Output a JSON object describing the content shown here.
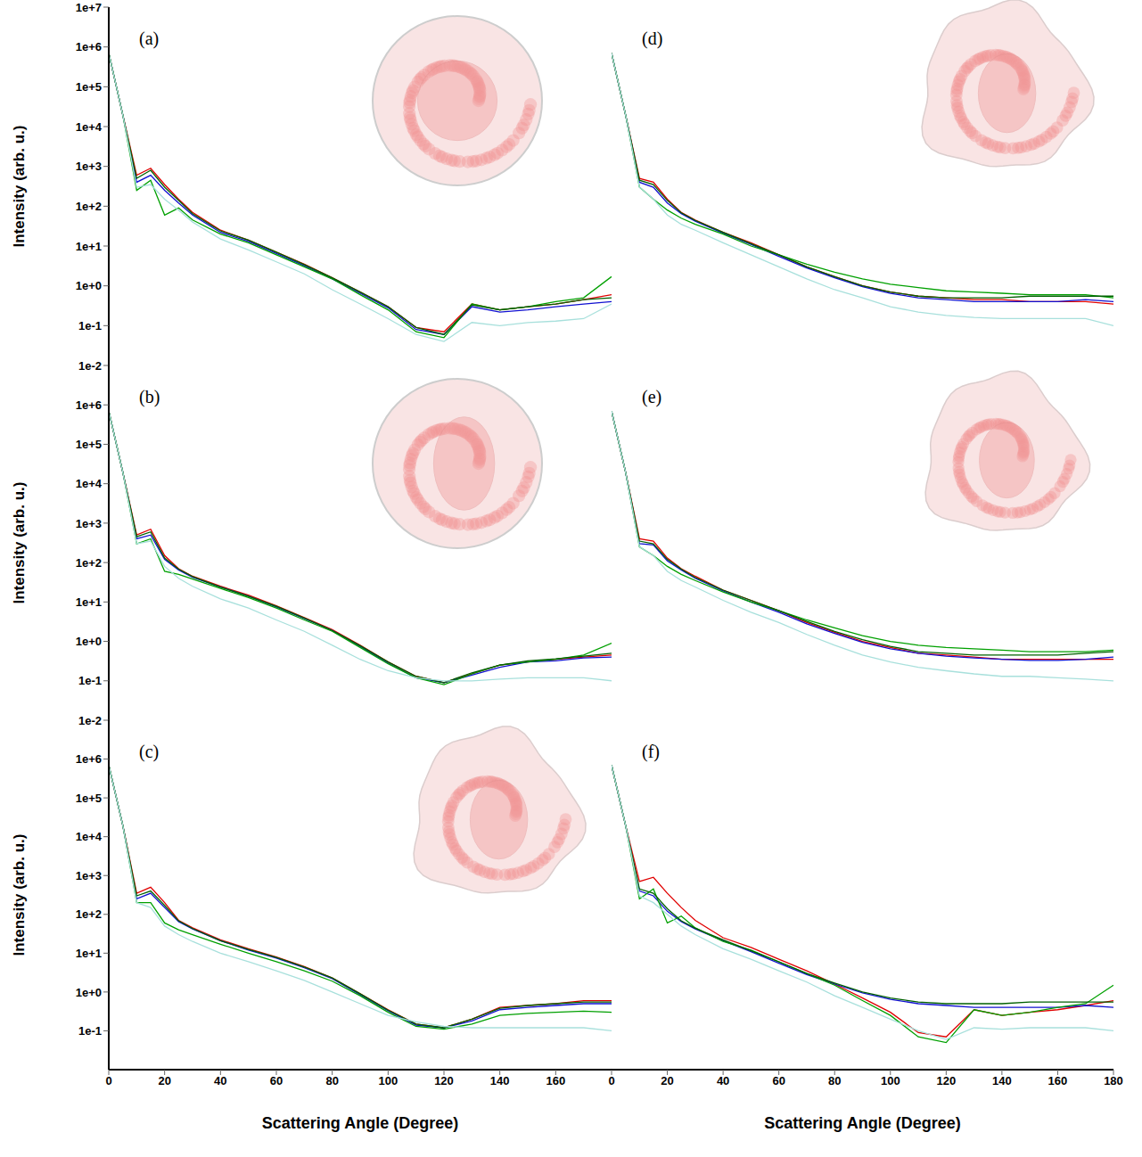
{
  "chart_data": [
    {
      "type": "line",
      "title": "(a)",
      "ylabel": "Intensity (arb. u.)",
      "log": "y",
      "tick_labels": "y",
      "grid": false,
      "xlim": [
        0,
        180
      ],
      "ylim": [
        0.01,
        10000000
      ],
      "yticks": [
        {
          "value": 0.01,
          "label": "1e-2"
        },
        {
          "value": 0.1,
          "label": "1e-1"
        },
        {
          "value": 1,
          "label": "1e+0"
        },
        {
          "value": 10,
          "label": "1e+1"
        },
        {
          "value": 100,
          "label": "1e+2"
        },
        {
          "value": 1000,
          "label": "1e+3"
        },
        {
          "value": 10000,
          "label": "1e+4"
        },
        {
          "value": 100000,
          "label": "1e+5"
        },
        {
          "value": 1000000,
          "label": "1e+6"
        },
        {
          "value": 10000000,
          "label": "1e+7"
        }
      ],
      "x": [
        0,
        5,
        10,
        15,
        20,
        25,
        30,
        40,
        50,
        60,
        70,
        80,
        90,
        100,
        110,
        120,
        130,
        140,
        150,
        160,
        170,
        180
      ],
      "series": [
        {
          "color": "#e00000",
          "values": [
            700000,
            20000,
            600,
            900,
            350,
            150,
            70,
            25,
            14,
            7,
            3.5,
            1.6,
            0.7,
            0.3,
            0.09,
            0.07,
            0.35,
            0.25,
            0.3,
            0.35,
            0.45,
            0.6
          ]
        },
        {
          "color": "#1010d0",
          "values": [
            700000,
            20000,
            400,
            600,
            250,
            120,
            60,
            22,
            13,
            6.5,
            3.2,
            1.5,
            0.65,
            0.28,
            0.08,
            0.06,
            0.3,
            0.22,
            0.25,
            0.3,
            0.35,
            0.4
          ]
        },
        {
          "color": "#00a000",
          "values": [
            700000,
            20000,
            250,
            450,
            60,
            90,
            45,
            20,
            12,
            6,
            3,
            1.5,
            0.6,
            0.25,
            0.07,
            0.05,
            0.35,
            0.25,
            0.3,
            0.4,
            0.5,
            1.7
          ]
        },
        {
          "color": "#006000",
          "values": [
            700000,
            20000,
            500,
            800,
            300,
            140,
            65,
            24,
            14,
            7,
            3.4,
            1.6,
            0.7,
            0.3,
            0.09,
            0.06,
            0.33,
            0.25,
            0.3,
            0.35,
            0.45,
            0.5
          ]
        },
        {
          "color": "#a8e0dc",
          "values": [
            700000,
            20000,
            300,
            350,
            150,
            80,
            40,
            15,
            8,
            4,
            2,
            0.8,
            0.35,
            0.15,
            0.06,
            0.04,
            0.12,
            0.1,
            0.12,
            0.13,
            0.15,
            0.35
          ]
        }
      ]
    },
    {
      "type": "line",
      "title": "(b)",
      "ylabel": "Intensity (arb. u.)",
      "log": "y",
      "tick_labels": "y",
      "grid": false,
      "xlim": [
        0,
        180
      ],
      "ylim": [
        0.01,
        10000000
      ],
      "yticks": [
        {
          "value": 0.01,
          "label": "1e-2"
        },
        {
          "value": 0.1,
          "label": "1e-1"
        },
        {
          "value": 1,
          "label": "1e+0"
        },
        {
          "value": 10,
          "label": "1e+1"
        },
        {
          "value": 100,
          "label": "1e+2"
        },
        {
          "value": 1000,
          "label": "1e+3"
        },
        {
          "value": 10000,
          "label": "1e+4"
        },
        {
          "value": 100000,
          "label": "1e+5"
        },
        {
          "value": 1000000,
          "label": "1e+6"
        }
      ],
      "x": [
        0,
        5,
        10,
        15,
        20,
        25,
        30,
        40,
        50,
        60,
        70,
        80,
        90,
        100,
        110,
        120,
        130,
        140,
        150,
        160,
        170,
        180
      ],
      "series": [
        {
          "color": "#e00000",
          "values": [
            700000,
            20000,
            500,
            700,
            150,
            70,
            45,
            25,
            15,
            8,
            4,
            2,
            0.8,
            0.3,
            0.13,
            0.09,
            0.15,
            0.25,
            0.3,
            0.35,
            0.4,
            0.45
          ]
        },
        {
          "color": "#1010d0",
          "values": [
            700000,
            20000,
            400,
            500,
            120,
            65,
            42,
            24,
            14,
            7.5,
            3.8,
            1.9,
            0.75,
            0.28,
            0.12,
            0.09,
            0.14,
            0.22,
            0.3,
            0.32,
            0.38,
            0.4
          ]
        },
        {
          "color": "#00a000",
          "values": [
            700000,
            20000,
            300,
            400,
            60,
            50,
            38,
            22,
            13,
            7,
            3.5,
            1.8,
            0.7,
            0.27,
            0.12,
            0.08,
            0.15,
            0.25,
            0.3,
            0.35,
            0.45,
            0.9
          ]
        },
        {
          "color": "#006000",
          "values": [
            700000,
            20000,
            450,
            600,
            130,
            68,
            44,
            24,
            14,
            7.8,
            3.9,
            1.9,
            0.78,
            0.3,
            0.13,
            0.09,
            0.16,
            0.25,
            0.32,
            0.36,
            0.42,
            0.5
          ]
        },
        {
          "color": "#a8e0dc",
          "values": [
            700000,
            20000,
            300,
            350,
            80,
            40,
            25,
            12,
            7,
            3.5,
            1.8,
            0.8,
            0.35,
            0.18,
            0.12,
            0.1,
            0.1,
            0.11,
            0.12,
            0.12,
            0.12,
            0.1
          ]
        }
      ]
    },
    {
      "type": "line",
      "title": "(c)",
      "ylabel": "Intensity (arb. u.)",
      "xlabel": "Scattering Angle (Degree)",
      "log": "y",
      "grid": false,
      "xlim": [
        0,
        180
      ],
      "ylim": [
        0.01,
        10000000
      ],
      "xticks": [
        0,
        20,
        40,
        60,
        80,
        100,
        120,
        140,
        160
      ],
      "yticks": [
        {
          "value": 0.1,
          "label": "1e-1"
        },
        {
          "value": 1,
          "label": "1e+0"
        },
        {
          "value": 10,
          "label": "1e+1"
        },
        {
          "value": 100,
          "label": "1e+2"
        },
        {
          "value": 1000,
          "label": "1e+3"
        },
        {
          "value": 10000,
          "label": "1e+4"
        },
        {
          "value": 100000,
          "label": "1e+5"
        },
        {
          "value": 1000000,
          "label": "1e+6"
        }
      ],
      "x": [
        0,
        5,
        10,
        15,
        20,
        25,
        30,
        40,
        50,
        60,
        70,
        80,
        90,
        100,
        110,
        120,
        130,
        140,
        150,
        160,
        170,
        180
      ],
      "series": [
        {
          "color": "#e00000",
          "values": [
            700000,
            20000,
            350,
            500,
            200,
            70,
            45,
            22,
            13,
            8,
            4.5,
            2.3,
            0.9,
            0.35,
            0.15,
            0.12,
            0.2,
            0.4,
            0.45,
            0.5,
            0.6,
            0.6
          ]
        },
        {
          "color": "#1010d0",
          "values": [
            700000,
            20000,
            250,
            350,
            150,
            65,
            42,
            21,
            12,
            7.5,
            4.2,
            2.2,
            0.85,
            0.33,
            0.14,
            0.12,
            0.18,
            0.35,
            0.4,
            0.45,
            0.5,
            0.5
          ]
        },
        {
          "color": "#00a000",
          "values": [
            700000,
            20000,
            200,
            200,
            60,
            40,
            30,
            17,
            10,
            6,
            3.5,
            1.9,
            0.8,
            0.3,
            0.13,
            0.11,
            0.15,
            0.25,
            0.28,
            0.3,
            0.32,
            0.3
          ]
        },
        {
          "color": "#006000",
          "values": [
            700000,
            20000,
            300,
            400,
            170,
            68,
            43,
            21,
            12.5,
            7.8,
            4.4,
            2.3,
            0.9,
            0.34,
            0.15,
            0.12,
            0.2,
            0.38,
            0.45,
            0.5,
            0.55,
            0.55
          ]
        },
        {
          "color": "#a8e0dc",
          "values": [
            700000,
            20000,
            200,
            150,
            50,
            30,
            20,
            10,
            6,
            3.5,
            2,
            1,
            0.5,
            0.25,
            0.17,
            0.13,
            0.12,
            0.12,
            0.12,
            0.12,
            0.12,
            0.1
          ]
        }
      ]
    },
    {
      "type": "line",
      "title": "(d)",
      "log": "y",
      "tick_labels": false,
      "grid": false,
      "xlim": [
        0,
        180
      ],
      "ylim": [
        0.01,
        10000000
      ],
      "x": [
        0,
        5,
        10,
        15,
        20,
        25,
        30,
        40,
        50,
        60,
        70,
        80,
        90,
        100,
        110,
        120,
        130,
        140,
        150,
        160,
        170,
        180
      ],
      "series": [
        {
          "color": "#e00000",
          "values": [
            700000,
            20000,
            500,
            400,
            150,
            70,
            45,
            22,
            12,
            6,
            3,
            1.7,
            1,
            0.7,
            0.55,
            0.5,
            0.45,
            0.45,
            0.4,
            0.4,
            0.4,
            0.35
          ]
        },
        {
          "color": "#1010d0",
          "values": [
            700000,
            20000,
            400,
            300,
            120,
            65,
            42,
            21,
            11,
            5.5,
            2.8,
            1.6,
            0.95,
            0.65,
            0.5,
            0.45,
            0.4,
            0.4,
            0.4,
            0.4,
            0.45,
            0.4
          ]
        },
        {
          "color": "#00a000",
          "values": [
            700000,
            20000,
            300,
            150,
            80,
            50,
            35,
            20,
            10,
            6,
            3.5,
            2.2,
            1.5,
            1.1,
            0.9,
            0.75,
            0.7,
            0.65,
            0.6,
            0.6,
            0.6,
            0.5
          ]
        },
        {
          "color": "#006000",
          "values": [
            700000,
            20000,
            450,
            350,
            140,
            68,
            44,
            22,
            11.5,
            6,
            3,
            1.7,
            1,
            0.7,
            0.55,
            0.5,
            0.5,
            0.5,
            0.55,
            0.55,
            0.55,
            0.55
          ]
        },
        {
          "color": "#a8e0dc",
          "values": [
            700000,
            20000,
            300,
            150,
            60,
            35,
            25,
            12,
            6,
            3,
            1.5,
            0.8,
            0.5,
            0.3,
            0.22,
            0.18,
            0.16,
            0.15,
            0.15,
            0.15,
            0.15,
            0.1
          ]
        }
      ]
    },
    {
      "type": "line",
      "title": "(e)",
      "log": "y",
      "tick_labels": false,
      "grid": false,
      "xlim": [
        0,
        180
      ],
      "ylim": [
        0.01,
        10000000
      ],
      "x": [
        0,
        5,
        10,
        15,
        20,
        25,
        30,
        40,
        50,
        60,
        70,
        80,
        90,
        100,
        110,
        120,
        130,
        140,
        150,
        160,
        170,
        180
      ],
      "series": [
        {
          "color": "#e00000",
          "values": [
            700000,
            20000,
            400,
            350,
            130,
            70,
            45,
            20,
            11,
            6,
            3,
            1.7,
            1,
            0.7,
            0.5,
            0.45,
            0.4,
            0.35,
            0.35,
            0.35,
            0.35,
            0.35
          ]
        },
        {
          "color": "#1010d0",
          "values": [
            700000,
            20000,
            300,
            280,
            110,
            65,
            40,
            19,
            10,
            5.5,
            2.8,
            1.6,
            0.95,
            0.65,
            0.5,
            0.42,
            0.38,
            0.35,
            0.33,
            0.33,
            0.35,
            0.4
          ]
        },
        {
          "color": "#00a000",
          "values": [
            700000,
            20000,
            250,
            150,
            80,
            50,
            35,
            18,
            10,
            6,
            3.5,
            2.2,
            1.4,
            1,
            0.8,
            0.7,
            0.65,
            0.6,
            0.55,
            0.55,
            0.55,
            0.6
          ]
        },
        {
          "color": "#006000",
          "values": [
            700000,
            20000,
            350,
            300,
            120,
            68,
            42,
            20,
            11,
            6,
            3.2,
            1.8,
            1.1,
            0.75,
            0.55,
            0.5,
            0.45,
            0.45,
            0.45,
            0.45,
            0.5,
            0.55
          ]
        },
        {
          "color": "#a8e0dc",
          "values": [
            700000,
            20000,
            250,
            150,
            60,
            35,
            24,
            11,
            5.5,
            3,
            1.5,
            0.8,
            0.45,
            0.3,
            0.22,
            0.18,
            0.15,
            0.13,
            0.13,
            0.12,
            0.11,
            0.1
          ]
        }
      ]
    },
    {
      "type": "line",
      "title": "(f)",
      "xlabel": "Scattering Angle (Degree)",
      "log": "y",
      "tick_labels": "x",
      "grid": false,
      "xlim": [
        0,
        180
      ],
      "ylim": [
        0.01,
        10000000
      ],
      "xticks": [
        0,
        20,
        40,
        60,
        80,
        100,
        120,
        140,
        160,
        180
      ],
      "x": [
        0,
        5,
        10,
        15,
        20,
        25,
        30,
        40,
        50,
        60,
        70,
        80,
        90,
        100,
        110,
        120,
        130,
        140,
        150,
        160,
        170,
        180
      ],
      "series": [
        {
          "color": "#e00000",
          "values": [
            700000,
            20000,
            700,
            900,
            350,
            150,
            70,
            25,
            14,
            7,
            3.5,
            1.6,
            0.7,
            0.3,
            0.09,
            0.07,
            0.35,
            0.25,
            0.3,
            0.35,
            0.45,
            0.6
          ]
        },
        {
          "color": "#1010d0",
          "values": [
            700000,
            20000,
            400,
            300,
            120,
            65,
            42,
            21,
            11,
            5.5,
            2.8,
            1.6,
            0.95,
            0.65,
            0.5,
            0.45,
            0.4,
            0.4,
            0.4,
            0.4,
            0.45,
            0.4
          ]
        },
        {
          "color": "#00a000",
          "values": [
            700000,
            20000,
            250,
            450,
            60,
            90,
            45,
            20,
            12,
            6,
            3,
            1.5,
            0.6,
            0.25,
            0.07,
            0.05,
            0.35,
            0.25,
            0.3,
            0.4,
            0.5,
            1.5
          ]
        },
        {
          "color": "#006000",
          "values": [
            700000,
            20000,
            450,
            350,
            140,
            68,
            44,
            22,
            11.5,
            6,
            3,
            1.7,
            1,
            0.7,
            0.55,
            0.5,
            0.5,
            0.5,
            0.55,
            0.55,
            0.55,
            0.55
          ]
        },
        {
          "color": "#a8e0dc",
          "values": [
            700000,
            20000,
            300,
            200,
            100,
            50,
            30,
            13,
            7,
            3.5,
            1.8,
            0.8,
            0.4,
            0.2,
            0.1,
            0.06,
            0.12,
            0.11,
            0.12,
            0.12,
            0.12,
            0.1
          ]
        }
      ]
    }
  ]
}
